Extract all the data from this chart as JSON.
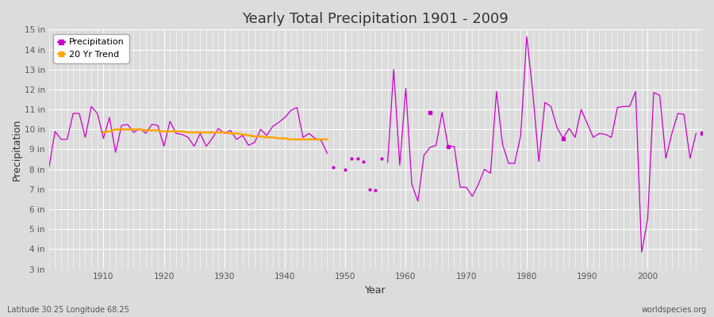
{
  "title": "Yearly Total Precipitation 1901 - 2009",
  "xlabel": "Year",
  "ylabel": "Precipitation",
  "bg_color": "#dcdcdc",
  "plot_bg_color": "#dcdcdc",
  "precip_color": "#cc00cc",
  "trend_color": "#ffa500",
  "ylim_min": 3,
  "ylim_max": 15,
  "yticks": [
    3,
    4,
    5,
    6,
    7,
    8,
    9,
    10,
    11,
    12,
    13,
    14,
    15
  ],
  "ytick_labels": [
    "3 in",
    "4 in",
    "5 in",
    "6 in",
    "7 in",
    "8 in",
    "9 in",
    "10 in",
    "11 in",
    "12 in",
    "13 in",
    "14 in",
    "15 in"
  ],
  "footnote_left": "Latitude 30.25 Longitude 68.25",
  "footnote_right": "worldspecies.org",
  "segments": [
    {
      "years": [
        1901,
        1902,
        1903,
        1904,
        1905,
        1906,
        1907,
        1908,
        1909,
        1910,
        1911,
        1912,
        1913,
        1914,
        1915,
        1916,
        1917,
        1918,
        1919,
        1920,
        1921,
        1922,
        1923,
        1924,
        1925,
        1926,
        1927,
        1928,
        1929,
        1930,
        1931,
        1932,
        1933,
        1934,
        1935,
        1936,
        1937,
        1938,
        1939,
        1940,
        1941,
        1942,
        1943,
        1944,
        1945,
        1946,
        1947
      ],
      "values": [
        8.1,
        9.9,
        9.5,
        9.5,
        10.8,
        10.8,
        9.6,
        11.15,
        10.8,
        9.55,
        10.6,
        8.85,
        10.2,
        10.25,
        9.85,
        10.05,
        9.8,
        10.25,
        10.2,
        9.15,
        10.4,
        9.8,
        9.75,
        9.6,
        9.15,
        9.8,
        9.15,
        9.55,
        10.05,
        9.8,
        9.95,
        9.5,
        9.7,
        9.2,
        9.35,
        10.0,
        9.7,
        10.15,
        10.35,
        10.6,
        10.95,
        11.1,
        9.6,
        9.8,
        9.55,
        9.45,
        8.8
      ]
    },
    {
      "years": [
        1957,
        1958,
        1959,
        1960,
        1961,
        1962,
        1963,
        1964,
        1965,
        1966,
        1967,
        1968,
        1969,
        1970,
        1971,
        1972,
        1973,
        1974,
        1975,
        1976,
        1977,
        1978,
        1979,
        1980,
        1981,
        1982,
        1983,
        1984,
        1985,
        1986,
        1987,
        1988,
        1989,
        1990,
        1991,
        1992,
        1993,
        1994,
        1995,
        1996,
        1997,
        1998,
        1999,
        2000,
        2001,
        2002,
        2003,
        2004,
        2005,
        2006,
        2007,
        2008
      ],
      "values": [
        8.35,
        13.0,
        8.2,
        12.05,
        7.25,
        6.4,
        8.7,
        9.1,
        9.2,
        10.85,
        9.15,
        9.15,
        7.1,
        7.1,
        6.65,
        7.25,
        8.0,
        7.8,
        11.9,
        9.25,
        8.3,
        8.3,
        9.7,
        14.65,
        11.85,
        8.4,
        11.35,
        11.15,
        10.1,
        9.55,
        10.05,
        9.6,
        11.0,
        10.3,
        9.6,
        9.8,
        9.75,
        9.6,
        11.1,
        11.15,
        11.15,
        11.9,
        3.85,
        5.5,
        11.85,
        11.7,
        8.55,
        9.8,
        10.8,
        10.75,
        8.55,
        9.8
      ]
    }
  ],
  "sparse_points": [
    {
      "year": 1948,
      "value": 8.1
    },
    {
      "year": 1950,
      "value": 8.0
    },
    {
      "year": 1951,
      "value": 8.55
    },
    {
      "year": 1952,
      "value": 8.55
    },
    {
      "year": 1953,
      "value": 8.4
    },
    {
      "year": 1954,
      "value": 7.0
    },
    {
      "year": 1955,
      "value": 6.95
    },
    {
      "year": 1956,
      "value": 8.55
    }
  ],
  "isolated_points": [
    {
      "year": 1964,
      "value": 10.85
    },
    {
      "year": 1967,
      "value": 9.15
    },
    {
      "year": 1986,
      "value": 9.55
    },
    {
      "year": 2009,
      "value": 9.8
    }
  ],
  "trend_years": [
    1910,
    1911,
    1912,
    1913,
    1914,
    1915,
    1916,
    1917,
    1918,
    1919,
    1920,
    1921,
    1922,
    1923,
    1924,
    1925,
    1926,
    1927,
    1928,
    1929,
    1930,
    1931,
    1932,
    1933,
    1934,
    1935,
    1936,
    1937,
    1938,
    1939,
    1940,
    1941,
    1942,
    1943,
    1944,
    1945,
    1946,
    1947
  ],
  "trend_values": [
    9.85,
    9.9,
    10.0,
    10.0,
    10.0,
    10.0,
    10.0,
    9.95,
    9.95,
    9.95,
    9.9,
    9.9,
    9.9,
    9.9,
    9.85,
    9.85,
    9.85,
    9.85,
    9.85,
    9.85,
    9.85,
    9.8,
    9.8,
    9.75,
    9.7,
    9.65,
    9.65,
    9.6,
    9.6,
    9.55,
    9.55,
    9.5,
    9.5,
    9.5,
    9.5,
    9.5,
    9.5,
    9.5
  ]
}
